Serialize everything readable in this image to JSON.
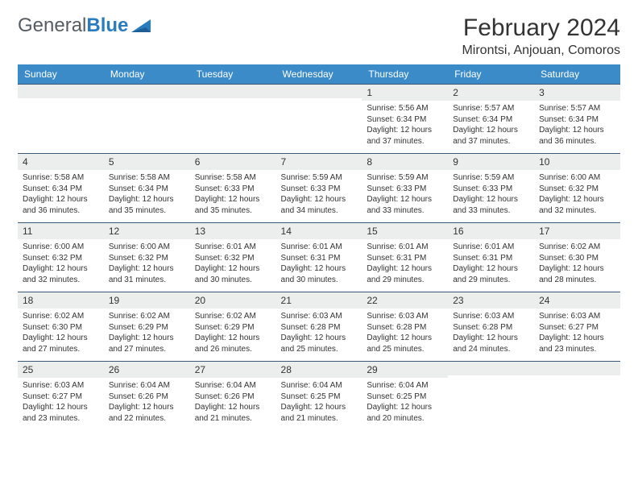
{
  "branding": {
    "logo_text_1": "General",
    "logo_text_2": "Blue",
    "logo_text_color": "#555c63",
    "logo_accent_color": "#2b7bbf"
  },
  "header": {
    "month_title": "February 2024",
    "location": "Mirontsi, Anjouan, Comoros"
  },
  "styling": {
    "header_bg": "#3b8bc9",
    "header_text_color": "#ffffff",
    "daynum_bg": "#eceded",
    "border_color": "#3b5a78",
    "body_font_size": 10,
    "header_font_size": 12,
    "title_font_size": 30,
    "location_font_size": 16
  },
  "weekdays": [
    "Sunday",
    "Monday",
    "Tuesday",
    "Wednesday",
    "Thursday",
    "Friday",
    "Saturday"
  ],
  "weeks": [
    [
      {
        "day": "",
        "lines": []
      },
      {
        "day": "",
        "lines": []
      },
      {
        "day": "",
        "lines": []
      },
      {
        "day": "",
        "lines": []
      },
      {
        "day": "1",
        "lines": [
          "Sunrise: 5:56 AM",
          "Sunset: 6:34 PM",
          "Daylight: 12 hours and 37 minutes."
        ]
      },
      {
        "day": "2",
        "lines": [
          "Sunrise: 5:57 AM",
          "Sunset: 6:34 PM",
          "Daylight: 12 hours and 37 minutes."
        ]
      },
      {
        "day": "3",
        "lines": [
          "Sunrise: 5:57 AM",
          "Sunset: 6:34 PM",
          "Daylight: 12 hours and 36 minutes."
        ]
      }
    ],
    [
      {
        "day": "4",
        "lines": [
          "Sunrise: 5:58 AM",
          "Sunset: 6:34 PM",
          "Daylight: 12 hours and 36 minutes."
        ]
      },
      {
        "day": "5",
        "lines": [
          "Sunrise: 5:58 AM",
          "Sunset: 6:34 PM",
          "Daylight: 12 hours and 35 minutes."
        ]
      },
      {
        "day": "6",
        "lines": [
          "Sunrise: 5:58 AM",
          "Sunset: 6:33 PM",
          "Daylight: 12 hours and 35 minutes."
        ]
      },
      {
        "day": "7",
        "lines": [
          "Sunrise: 5:59 AM",
          "Sunset: 6:33 PM",
          "Daylight: 12 hours and 34 minutes."
        ]
      },
      {
        "day": "8",
        "lines": [
          "Sunrise: 5:59 AM",
          "Sunset: 6:33 PM",
          "Daylight: 12 hours and 33 minutes."
        ]
      },
      {
        "day": "9",
        "lines": [
          "Sunrise: 5:59 AM",
          "Sunset: 6:33 PM",
          "Daylight: 12 hours and 33 minutes."
        ]
      },
      {
        "day": "10",
        "lines": [
          "Sunrise: 6:00 AM",
          "Sunset: 6:32 PM",
          "Daylight: 12 hours and 32 minutes."
        ]
      }
    ],
    [
      {
        "day": "11",
        "lines": [
          "Sunrise: 6:00 AM",
          "Sunset: 6:32 PM",
          "Daylight: 12 hours and 32 minutes."
        ]
      },
      {
        "day": "12",
        "lines": [
          "Sunrise: 6:00 AM",
          "Sunset: 6:32 PM",
          "Daylight: 12 hours and 31 minutes."
        ]
      },
      {
        "day": "13",
        "lines": [
          "Sunrise: 6:01 AM",
          "Sunset: 6:32 PM",
          "Daylight: 12 hours and 30 minutes."
        ]
      },
      {
        "day": "14",
        "lines": [
          "Sunrise: 6:01 AM",
          "Sunset: 6:31 PM",
          "Daylight: 12 hours and 30 minutes."
        ]
      },
      {
        "day": "15",
        "lines": [
          "Sunrise: 6:01 AM",
          "Sunset: 6:31 PM",
          "Daylight: 12 hours and 29 minutes."
        ]
      },
      {
        "day": "16",
        "lines": [
          "Sunrise: 6:01 AM",
          "Sunset: 6:31 PM",
          "Daylight: 12 hours and 29 minutes."
        ]
      },
      {
        "day": "17",
        "lines": [
          "Sunrise: 6:02 AM",
          "Sunset: 6:30 PM",
          "Daylight: 12 hours and 28 minutes."
        ]
      }
    ],
    [
      {
        "day": "18",
        "lines": [
          "Sunrise: 6:02 AM",
          "Sunset: 6:30 PM",
          "Daylight: 12 hours and 27 minutes."
        ]
      },
      {
        "day": "19",
        "lines": [
          "Sunrise: 6:02 AM",
          "Sunset: 6:29 PM",
          "Daylight: 12 hours and 27 minutes."
        ]
      },
      {
        "day": "20",
        "lines": [
          "Sunrise: 6:02 AM",
          "Sunset: 6:29 PM",
          "Daylight: 12 hours and 26 minutes."
        ]
      },
      {
        "day": "21",
        "lines": [
          "Sunrise: 6:03 AM",
          "Sunset: 6:28 PM",
          "Daylight: 12 hours and 25 minutes."
        ]
      },
      {
        "day": "22",
        "lines": [
          "Sunrise: 6:03 AM",
          "Sunset: 6:28 PM",
          "Daylight: 12 hours and 25 minutes."
        ]
      },
      {
        "day": "23",
        "lines": [
          "Sunrise: 6:03 AM",
          "Sunset: 6:28 PM",
          "Daylight: 12 hours and 24 minutes."
        ]
      },
      {
        "day": "24",
        "lines": [
          "Sunrise: 6:03 AM",
          "Sunset: 6:27 PM",
          "Daylight: 12 hours and 23 minutes."
        ]
      }
    ],
    [
      {
        "day": "25",
        "lines": [
          "Sunrise: 6:03 AM",
          "Sunset: 6:27 PM",
          "Daylight: 12 hours and 23 minutes."
        ]
      },
      {
        "day": "26",
        "lines": [
          "Sunrise: 6:04 AM",
          "Sunset: 6:26 PM",
          "Daylight: 12 hours and 22 minutes."
        ]
      },
      {
        "day": "27",
        "lines": [
          "Sunrise: 6:04 AM",
          "Sunset: 6:26 PM",
          "Daylight: 12 hours and 21 minutes."
        ]
      },
      {
        "day": "28",
        "lines": [
          "Sunrise: 6:04 AM",
          "Sunset: 6:25 PM",
          "Daylight: 12 hours and 21 minutes."
        ]
      },
      {
        "day": "29",
        "lines": [
          "Sunrise: 6:04 AM",
          "Sunset: 6:25 PM",
          "Daylight: 12 hours and 20 minutes."
        ]
      },
      {
        "day": "",
        "lines": []
      },
      {
        "day": "",
        "lines": []
      }
    ]
  ]
}
